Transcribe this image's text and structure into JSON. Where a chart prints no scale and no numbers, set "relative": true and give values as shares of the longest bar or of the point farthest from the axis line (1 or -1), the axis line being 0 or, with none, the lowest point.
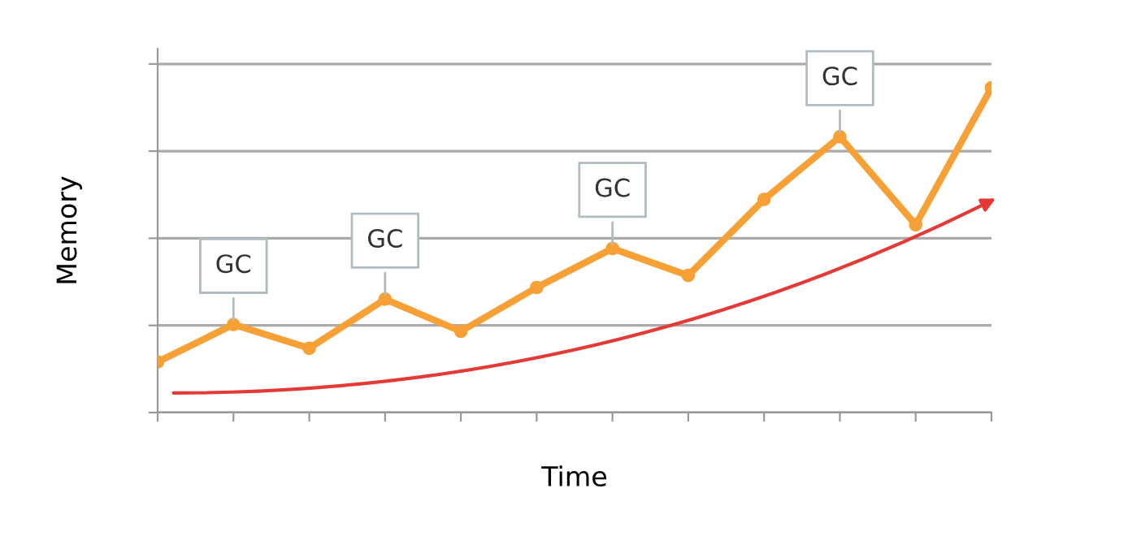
{
  "chart_data": {
    "type": "line",
    "relative": true,
    "xlabel": "Time",
    "ylabel": "Memory",
    "categories": [
      null,
      null,
      null,
      null,
      null,
      null,
      null,
      null,
      null,
      null,
      null,
      null
    ],
    "series": [
      {
        "color": "#f7a035",
        "marker": "circle",
        "values": [
          0.156,
          0.271,
          0.198,
          0.349,
          0.25,
          0.385,
          0.505,
          0.422,
          0.656,
          0.849,
          0.578,
          1.0
        ]
      }
    ],
    "annotations": [
      {
        "text": "GC",
        "y": 0.271
      },
      {
        "text": "GC",
        "y": 0.349
      },
      {
        "text": "GC",
        "y": 0.505
      },
      {
        "text": "GC",
        "y": 0.849
      }
    ],
    "grid": "y",
    "legend": false
  }
}
